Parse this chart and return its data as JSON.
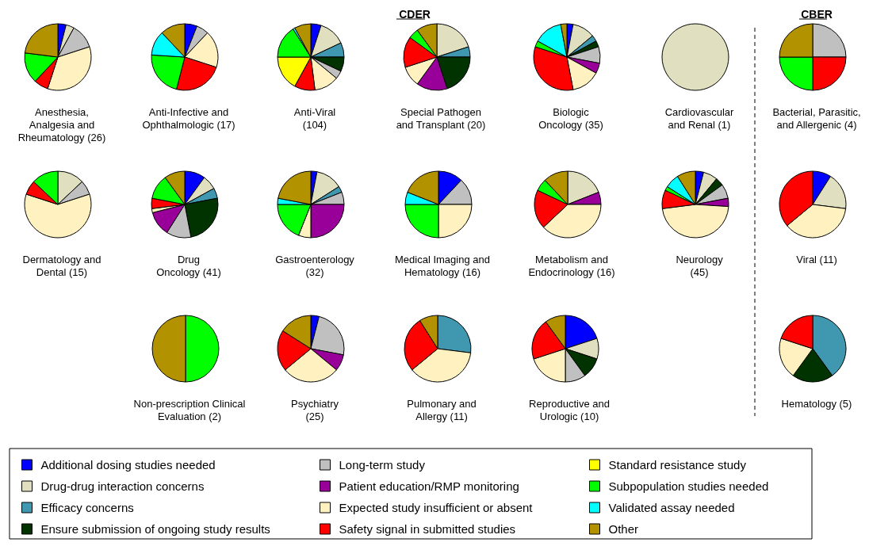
{
  "chart_data": {
    "type": "pie",
    "categories": [
      "Additional dosing studies needed",
      "Drug-drug interaction concerns",
      "Efficacy concerns",
      "Ensure submission of ongoing study results",
      "Long-term study",
      "Patient education/RMP monitoring",
      "Expected study insufficient or absent",
      "Safety signal in submitted studies",
      "Standard resistance study",
      "Subpopulation studies needed",
      "Validated assay needed",
      "Other"
    ],
    "colors": [
      "#0000ff",
      "#e0e0c0",
      "#4097b0",
      "#003300",
      "#c0c0c0",
      "#990099",
      "#fff2c0",
      "#ff0000",
      "#ffff00",
      "#00ff00",
      "#00ffff",
      "#b39200"
    ],
    "series": [
      {
        "name": "Anesthesia,\nAnalgesia and\nRheumatology (26)",
        "values": [
          4,
          4,
          null,
          null,
          12,
          null,
          35,
          7,
          null,
          15,
          null,
          23
        ]
      },
      {
        "name": "Anti-Infective and\nOphthalmologic (17)",
        "values": [
          6,
          null,
          null,
          null,
          6,
          null,
          18,
          24,
          null,
          22,
          12,
          12
        ]
      },
      {
        "name": "Anti-Viral\n(104)",
        "values": [
          5,
          13,
          7,
          7,
          4,
          null,
          12,
          10,
          17,
          16,
          1,
          8
        ]
      },
      {
        "name": "Special Pathogen\nand Transplant (20)",
        "values": [
          null,
          20,
          5,
          20,
          null,
          15,
          10,
          15,
          null,
          5,
          null,
          10
        ]
      },
      {
        "name": "Biologic\nOncology (35)",
        "values": [
          3,
          11,
          3,
          3,
          8,
          5,
          14,
          33,
          null,
          3,
          14,
          3
        ]
      },
      {
        "name": "Cardiovascular\nand Renal (1)",
        "values": [
          null,
          100,
          null,
          null,
          null,
          null,
          null,
          null,
          null,
          null,
          null,
          null
        ]
      },
      {
        "name": "Bacterial, Parasitic,\nand Allergenic (4)",
        "values": [
          null,
          null,
          null,
          null,
          25,
          null,
          null,
          25,
          null,
          25,
          null,
          25
        ]
      },
      {
        "name": "Dermatology and\nDental (15)",
        "values": [
          null,
          13,
          null,
          null,
          7,
          null,
          60,
          7,
          null,
          13,
          null,
          null
        ]
      },
      {
        "name": "Drug\nOncology (41)",
        "values": [
          10,
          7,
          5,
          25,
          12,
          12,
          2,
          5,
          null,
          12,
          null,
          10
        ]
      },
      {
        "name": "Gastroenterology\n(32)",
        "values": [
          3,
          13,
          3,
          null,
          6,
          25,
          6,
          null,
          null,
          19,
          3,
          22
        ]
      },
      {
        "name": "Medical Imaging and\nHematology (16)",
        "values": [
          12,
          null,
          null,
          null,
          13,
          null,
          25,
          null,
          null,
          25,
          6,
          19
        ]
      },
      {
        "name": "Metabolism and\nEndocrinology (16)",
        "values": [
          null,
          19,
          null,
          null,
          null,
          6,
          38,
          19,
          null,
          6,
          null,
          12
        ]
      },
      {
        "name": "Neurology\n(45)",
        "values": [
          4,
          7,
          null,
          4,
          7,
          4,
          47,
          9,
          null,
          2,
          7,
          9
        ]
      },
      {
        "name": "Viral (11)",
        "values": [
          9,
          18,
          null,
          null,
          null,
          null,
          37,
          36,
          null,
          null,
          null,
          null
        ]
      },
      {
        "name": "Non-prescription Clinical\nEvaluation (2)",
        "values": [
          null,
          null,
          null,
          null,
          null,
          null,
          null,
          null,
          null,
          50,
          null,
          50
        ]
      },
      {
        "name": "Psychiatry\n(25)",
        "values": [
          4,
          null,
          null,
          null,
          24,
          8,
          28,
          20,
          null,
          null,
          null,
          16
        ]
      },
      {
        "name": "Pulmonary and\nAllergy (11)",
        "values": [
          null,
          null,
          27,
          null,
          null,
          null,
          37,
          27,
          null,
          null,
          null,
          9
        ]
      },
      {
        "name": "Reproductive and\nUrologic (10)",
        "values": [
          20,
          10,
          null,
          10,
          10,
          null,
          20,
          20,
          null,
          null,
          null,
          10
        ]
      },
      {
        "name": "Hematology (5)",
        "values": [
          null,
          null,
          40,
          20,
          null,
          null,
          20,
          20,
          null,
          null,
          null,
          null
        ]
      }
    ],
    "annotations": [
      "CDER",
      "CBER"
    ],
    "legend": "bottom"
  }
}
